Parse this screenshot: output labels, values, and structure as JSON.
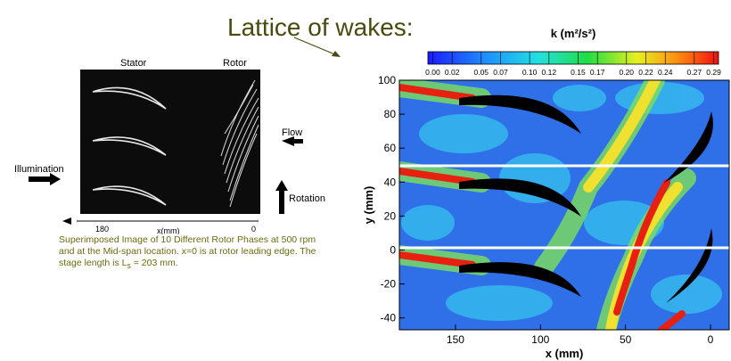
{
  "heading": "Lattice of wakes:",
  "photo": {
    "stator_label": "Stator",
    "rotor_label": "Rotor",
    "flow_label": "Flow",
    "illumination_label": "Illumination",
    "rotation_label": "Rotation",
    "axis_left": "180",
    "axis_title": "x(mm)",
    "axis_right": "0"
  },
  "caption": {
    "text": "Superimposed Image of 10 Different Rotor Phases at 500 rpm and at the Mid-span location. x=0 is at rotor leading edge. The stage length is L",
    "subscript": "s",
    "tail": " = 203 mm."
  },
  "contour": {
    "title": "k (m²/s²)",
    "clim": [
      -0.005,
      0.295
    ],
    "colorbar_ticks": [
      {
        "value": 0.0,
        "label": "0.00"
      },
      {
        "value": 0.02,
        "label": "0.02"
      },
      {
        "value": 0.05,
        "label": "0.05"
      },
      {
        "value": 0.07,
        "label": "0.07"
      },
      {
        "value": 0.1,
        "label": "0.10"
      },
      {
        "value": 0.12,
        "label": "0.12"
      },
      {
        "value": 0.15,
        "label": "0.15"
      },
      {
        "value": 0.17,
        "label": "0.17"
      },
      {
        "value": 0.2,
        "label": "0.20"
      },
      {
        "value": 0.22,
        "label": "0.22"
      },
      {
        "value": 0.24,
        "label": "0.24"
      },
      {
        "value": 0.27,
        "label": "0.27"
      },
      {
        "value": 0.29,
        "label": "0.29"
      }
    ],
    "y_label": "y (mm)",
    "ylim": [
      -47,
      100
    ],
    "yticks": [
      100,
      80,
      60,
      40,
      20,
      0,
      -20,
      -40
    ],
    "x_label": "x (mm)",
    "xlim": [
      183,
      -11
    ],
    "xticks": [
      150,
      100,
      50,
      0
    ]
  }
}
